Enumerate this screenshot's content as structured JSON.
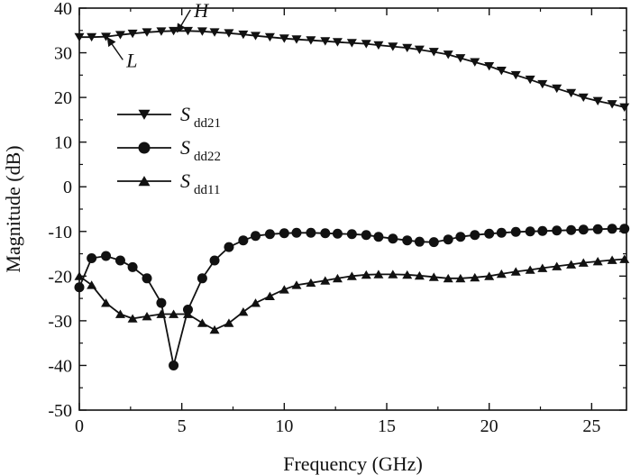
{
  "chart_data": {
    "type": "line",
    "xlabel": "Frequency (GHz)",
    "ylabel": "Magnitude (dB)",
    "xlim": [
      0,
      26.7
    ],
    "ylim": [
      -50,
      40
    ],
    "xticks": [
      0,
      5,
      10,
      15,
      20,
      25
    ],
    "yticks": [
      -50,
      -40,
      -30,
      -20,
      -10,
      0,
      10,
      20,
      30,
      40
    ],
    "legend_position": "left",
    "series": [
      {
        "name": "Sdd21",
        "name_main": "S",
        "name_sub": "dd21",
        "marker": "triangle-down",
        "color": "#111111",
        "points": [
          [
            0,
            33.5
          ],
          [
            0.6,
            33.5
          ],
          [
            1.3,
            33.6
          ],
          [
            2.0,
            34.0
          ],
          [
            2.6,
            34.3
          ],
          [
            3.3,
            34.6
          ],
          [
            4.0,
            34.8
          ],
          [
            4.6,
            34.9
          ],
          [
            5.3,
            34.9
          ],
          [
            6.0,
            34.8
          ],
          [
            6.6,
            34.6
          ],
          [
            7.3,
            34.4
          ],
          [
            8.0,
            34.1
          ],
          [
            8.6,
            33.8
          ],
          [
            9.3,
            33.5
          ],
          [
            10.0,
            33.2
          ],
          [
            10.6,
            33.0
          ],
          [
            11.3,
            32.8
          ],
          [
            12.0,
            32.6
          ],
          [
            12.6,
            32.4
          ],
          [
            13.3,
            32.2
          ],
          [
            14.0,
            32.0
          ],
          [
            14.6,
            31.7
          ],
          [
            15.3,
            31.4
          ],
          [
            16.0,
            31.1
          ],
          [
            16.6,
            30.7
          ],
          [
            17.3,
            30.2
          ],
          [
            18.0,
            29.6
          ],
          [
            18.6,
            28.8
          ],
          [
            19.3,
            27.9
          ],
          [
            20.0,
            27.0
          ],
          [
            20.6,
            26.0
          ],
          [
            21.3,
            25.0
          ],
          [
            22.0,
            24.0
          ],
          [
            22.6,
            23.0
          ],
          [
            23.3,
            22.0
          ],
          [
            24.0,
            21.0
          ],
          [
            24.6,
            20.0
          ],
          [
            25.3,
            19.2
          ],
          [
            26.0,
            18.5
          ],
          [
            26.6,
            17.8
          ]
        ]
      },
      {
        "name": "Sdd22",
        "name_main": "S",
        "name_sub": "dd22",
        "marker": "circle",
        "color": "#111111",
        "points": [
          [
            0,
            -22.5
          ],
          [
            0.6,
            -16.0
          ],
          [
            1.3,
            -15.5
          ],
          [
            2.0,
            -16.5
          ],
          [
            2.6,
            -18.0
          ],
          [
            3.3,
            -20.5
          ],
          [
            4.0,
            -26.0
          ],
          [
            4.6,
            -40.0
          ],
          [
            5.3,
            -27.5
          ],
          [
            6.0,
            -20.5
          ],
          [
            6.6,
            -16.5
          ],
          [
            7.3,
            -13.5
          ],
          [
            8.0,
            -12.0
          ],
          [
            8.6,
            -11.0
          ],
          [
            9.3,
            -10.6
          ],
          [
            10.0,
            -10.4
          ],
          [
            10.6,
            -10.3
          ],
          [
            11.3,
            -10.3
          ],
          [
            12.0,
            -10.4
          ],
          [
            12.6,
            -10.5
          ],
          [
            13.3,
            -10.6
          ],
          [
            14.0,
            -10.8
          ],
          [
            14.6,
            -11.2
          ],
          [
            15.3,
            -11.6
          ],
          [
            16.0,
            -12.0
          ],
          [
            16.6,
            -12.3
          ],
          [
            17.3,
            -12.4
          ],
          [
            18.0,
            -11.8
          ],
          [
            18.6,
            -11.2
          ],
          [
            19.3,
            -10.8
          ],
          [
            20.0,
            -10.5
          ],
          [
            20.6,
            -10.3
          ],
          [
            21.3,
            -10.1
          ],
          [
            22.0,
            -10.0
          ],
          [
            22.6,
            -9.9
          ],
          [
            23.3,
            -9.8
          ],
          [
            24.0,
            -9.7
          ],
          [
            24.6,
            -9.6
          ],
          [
            25.3,
            -9.5
          ],
          [
            26.0,
            -9.4
          ],
          [
            26.6,
            -9.4
          ]
        ]
      },
      {
        "name": "Sdd11",
        "name_main": "S",
        "name_sub": "dd11",
        "marker": "triangle-up",
        "color": "#111111",
        "points": [
          [
            0,
            -20.0
          ],
          [
            0.6,
            -22.0
          ],
          [
            1.3,
            -26.0
          ],
          [
            2.0,
            -28.5
          ],
          [
            2.6,
            -29.5
          ],
          [
            3.3,
            -29.0
          ],
          [
            4.0,
            -28.5
          ],
          [
            4.6,
            -28.5
          ],
          [
            5.3,
            -28.5
          ],
          [
            6.0,
            -30.5
          ],
          [
            6.6,
            -32.0
          ],
          [
            7.3,
            -30.5
          ],
          [
            8.0,
            -28.0
          ],
          [
            8.6,
            -26.0
          ],
          [
            9.3,
            -24.5
          ],
          [
            10.0,
            -23.0
          ],
          [
            10.6,
            -22.0
          ],
          [
            11.3,
            -21.5
          ],
          [
            12.0,
            -21.0
          ],
          [
            12.6,
            -20.5
          ],
          [
            13.3,
            -20.0
          ],
          [
            14.0,
            -19.7
          ],
          [
            14.6,
            -19.6
          ],
          [
            15.3,
            -19.6
          ],
          [
            16.0,
            -19.7
          ],
          [
            16.6,
            -19.9
          ],
          [
            17.3,
            -20.2
          ],
          [
            18.0,
            -20.5
          ],
          [
            18.6,
            -20.5
          ],
          [
            19.3,
            -20.3
          ],
          [
            20.0,
            -20.0
          ],
          [
            20.6,
            -19.5
          ],
          [
            21.3,
            -19.0
          ],
          [
            22.0,
            -18.6
          ],
          [
            22.6,
            -18.2
          ],
          [
            23.3,
            -17.8
          ],
          [
            24.0,
            -17.4
          ],
          [
            24.6,
            -17.0
          ],
          [
            25.3,
            -16.7
          ],
          [
            26.0,
            -16.4
          ],
          [
            26.6,
            -16.2
          ]
        ]
      }
    ],
    "annotations": [
      {
        "text": "H",
        "x": 5.6,
        "y": 38.0,
        "arrow_to": [
          4.8,
          34.8
        ]
      },
      {
        "text": "L",
        "x": 2.3,
        "y": 26.8,
        "arrow_to": [
          1.4,
          33.2
        ]
      }
    ]
  }
}
